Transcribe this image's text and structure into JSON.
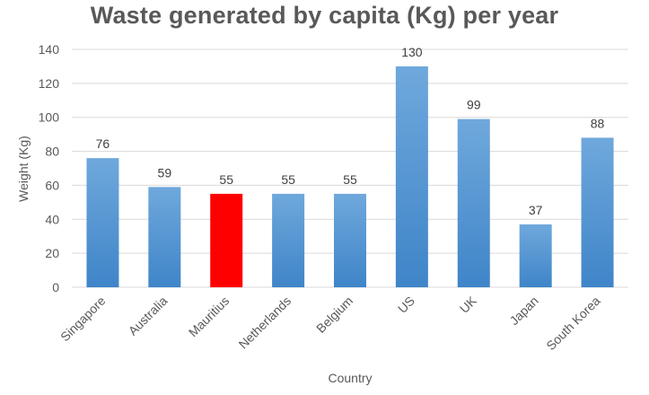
{
  "chart_data": {
    "type": "bar",
    "title": "Waste generated by capita (Kg) per year",
    "xlabel": "Country",
    "ylabel": "Weight (Kg)",
    "ylim": [
      0,
      140
    ],
    "yticks": [
      0,
      20,
      40,
      60,
      80,
      100,
      120,
      140
    ],
    "grid": true,
    "categories": [
      "Singapore",
      "Australia",
      "Mauritius",
      "Netherlands",
      "Belgium",
      "US",
      "UK",
      "Japan",
      "South Korea"
    ],
    "values": [
      76,
      59,
      55,
      55,
      55,
      130,
      99,
      37,
      88
    ],
    "value_labels": [
      "76",
      "59",
      "55",
      "55",
      "55",
      "130",
      "99",
      "37",
      "88"
    ],
    "bar_colors": [
      "#5b9bd5",
      "#5b9bd5",
      "#ff0000",
      "#5b9bd5",
      "#5b9bd5",
      "#5b9bd5",
      "#5b9bd5",
      "#5b9bd5",
      "#5b9bd5"
    ],
    "highlight_category": "Mauritius"
  }
}
